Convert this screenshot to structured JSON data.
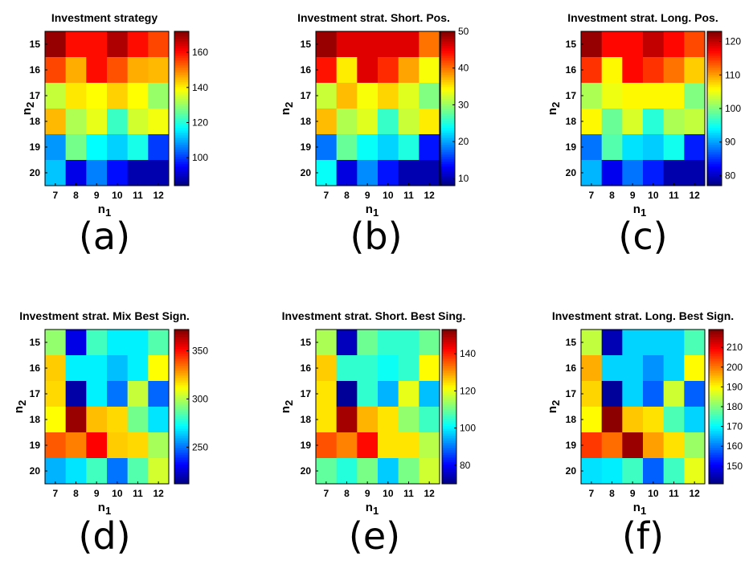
{
  "colors": {
    "colormap": "jet",
    "frame": "#000000",
    "background": "#ffffff"
  },
  "chart_data": [
    {
      "type": "heatmap",
      "title": "Investment strategy",
      "panel_label": "(a)",
      "x": [
        "7",
        "8",
        "9",
        "10",
        "11",
        "12"
      ],
      "y": [
        "15",
        "16",
        "17",
        "18",
        "19",
        "20"
      ],
      "xlabel": "n",
      "xlabel_sub": "1",
      "ylabel": "n",
      "ylabel_sub": "2",
      "clim": [
        84,
        172
      ],
      "colorbar_ticks": [
        100,
        120,
        140,
        160
      ],
      "values": [
        [
          170,
          160,
          160,
          168,
          160,
          155
        ],
        [
          155,
          146,
          160,
          154,
          146,
          145
        ],
        [
          134,
          141,
          139,
          143,
          139,
          130
        ],
        [
          145,
          132,
          137,
          122,
          135,
          138
        ],
        [
          108,
          127,
          117,
          113,
          119,
          100
        ],
        [
          112,
          93,
          106,
          96,
          88,
          88
        ]
      ]
    },
    {
      "type": "heatmap",
      "title": "Investment strat. Short. Pos.",
      "panel_label": "(b)",
      "x": [
        "7",
        "8",
        "9",
        "10",
        "11",
        "12"
      ],
      "y": [
        "15",
        "16",
        "17",
        "18",
        "19",
        "20"
      ],
      "xlabel": "n",
      "xlabel_sub": "1",
      "ylabel": "n",
      "ylabel_sub": "2",
      "clim": [
        8,
        50
      ],
      "colorbar_ticks": [
        10,
        20,
        30,
        40,
        50
      ],
      "values": [
        [
          49,
          46,
          46,
          46,
          46,
          40
        ],
        [
          44,
          35,
          46,
          43,
          38,
          34
        ],
        [
          32,
          37,
          34,
          36,
          33,
          29
        ],
        [
          37,
          31,
          33,
          26,
          32,
          35
        ],
        [
          18,
          28,
          24,
          22,
          25,
          14
        ],
        [
          24,
          12,
          19,
          14,
          10,
          10
        ]
      ]
    },
    {
      "type": "heatmap",
      "title": "Investment strat. Long. Pos.",
      "panel_label": "(c)",
      "x": [
        "7",
        "8",
        "9",
        "10",
        "11",
        "12"
      ],
      "y": [
        "15",
        "16",
        "17",
        "18",
        "19",
        "20"
      ],
      "xlabel": "n",
      "xlabel_sub": "1",
      "ylabel": "n",
      "ylabel_sub": "2",
      "clim": [
        77,
        123
      ],
      "colorbar_ticks": [
        80,
        90,
        100,
        110,
        120
      ],
      "values": [
        [
          122,
          117,
          117,
          120,
          117,
          114
        ],
        [
          115,
          106,
          117,
          115,
          112,
          108
        ],
        [
          102,
          105,
          106,
          106,
          106,
          100
        ],
        [
          106,
          99,
          104,
          96,
          102,
          103
        ],
        [
          88,
          98,
          93,
          92,
          95,
          84
        ],
        [
          91,
          82,
          88,
          84,
          79,
          79
        ]
      ]
    },
    {
      "type": "heatmap",
      "title": "Investment strat. Mix Best Sign.",
      "panel_label": "(d)",
      "x": [
        "7",
        "8",
        "9",
        "10",
        "11",
        "12"
      ],
      "y": [
        "15",
        "16",
        "17",
        "18",
        "19",
        "20"
      ],
      "xlabel": "n",
      "xlabel_sub": "1",
      "ylabel": "n",
      "ylabel_sub": "2",
      "clim": [
        212,
        372
      ],
      "colorbar_ticks": [
        250,
        300,
        350
      ],
      "values": [
        [
          295,
          228,
          282,
          270,
          270,
          285
        ],
        [
          320,
          270,
          270,
          262,
          270,
          312
        ],
        [
          318,
          218,
          270,
          250,
          303,
          248
        ],
        [
          312,
          368,
          322,
          318,
          290,
          268
        ],
        [
          338,
          332,
          352,
          320,
          318,
          298
        ],
        [
          260,
          268,
          282,
          250,
          285,
          305
        ]
      ]
    },
    {
      "type": "heatmap",
      "title": "Investment strat. Short. Best Sing.",
      "panel_label": "(e)",
      "x": [
        "7",
        "8",
        "9",
        "10",
        "11",
        "12"
      ],
      "y": [
        "15",
        "16",
        "17",
        "18",
        "19",
        "20"
      ],
      "xlabel": "n",
      "xlabel_sub": "1",
      "ylabel": "n",
      "ylabel_sub": "2",
      "clim": [
        70,
        153
      ],
      "colorbar_ticks": [
        80,
        100,
        120,
        140
      ],
      "values": [
        [
          115,
          75,
          110,
          105,
          105,
          110
        ],
        [
          126,
          105,
          105,
          102,
          105,
          122
        ],
        [
          124,
          72,
          105,
          95,
          120,
          96
        ],
        [
          124,
          150,
          128,
          124,
          113,
          106
        ],
        [
          136,
          132,
          142,
          124,
          124,
          116
        ],
        [
          109,
          104,
          111,
          97,
          111,
          118
        ]
      ]
    },
    {
      "type": "heatmap",
      "title": "Investment strat. Long. Best Sign.",
      "panel_label": "(f)",
      "x": [
        "7",
        "8",
        "9",
        "10",
        "11",
        "12"
      ],
      "y": [
        "15",
        "16",
        "17",
        "18",
        "19",
        "20"
      ],
      "xlabel": "n",
      "xlabel_sub": "1",
      "ylabel": "n",
      "ylabel_sub": "2",
      "clim": [
        141,
        219
      ],
      "colorbar_ticks": [
        150,
        160,
        170,
        180,
        190,
        200,
        210
      ],
      "values": [
        [
          185,
          145,
          167,
          167,
          167,
          176
        ],
        [
          196,
          167,
          167,
          162,
          167,
          190
        ],
        [
          193,
          143,
          167,
          158,
          186,
          158
        ],
        [
          190,
          218,
          194,
          192,
          176,
          167
        ],
        [
          205,
          201,
          217,
          197,
          192,
          182
        ],
        [
          168,
          169,
          175,
          158,
          175,
          188
        ]
      ]
    }
  ]
}
